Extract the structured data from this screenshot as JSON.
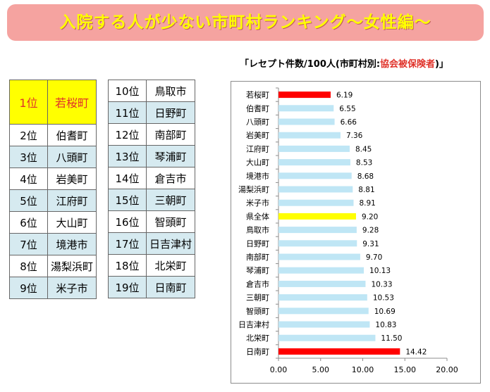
{
  "banner": {
    "title": "入院する人が少ない市町村ランキング～女性編～"
  },
  "ranking_left": [
    {
      "rank": "1位",
      "town": "若桜町"
    },
    {
      "rank": "2位",
      "town": "伯耆町"
    },
    {
      "rank": "3位",
      "town": "八頭町"
    },
    {
      "rank": "4位",
      "town": "岩美町"
    },
    {
      "rank": "5位",
      "town": "江府町"
    },
    {
      "rank": "6位",
      "town": "大山町"
    },
    {
      "rank": "7位",
      "town": "境港市"
    },
    {
      "rank": "8位",
      "town": "湯梨浜町"
    },
    {
      "rank": "9位",
      "town": "米子市"
    }
  ],
  "ranking_right": [
    {
      "rank": "10位",
      "town": "鳥取市"
    },
    {
      "rank": "11位",
      "town": "日野町"
    },
    {
      "rank": "12位",
      "town": "南部町"
    },
    {
      "rank": "13位",
      "town": "琴浦町"
    },
    {
      "rank": "14位",
      "town": "倉吉市"
    },
    {
      "rank": "15位",
      "town": "三朝町"
    },
    {
      "rank": "16位",
      "town": "智頭町"
    },
    {
      "rank": "17位",
      "town": "日吉津村"
    },
    {
      "rank": "18位",
      "town": "北栄町"
    },
    {
      "rank": "19位",
      "town": "日南町"
    }
  ],
  "chart_title": {
    "prefix": "「レセプト件数/100人(市町村別:",
    "highlight": "協会被保険者",
    "suffix": ")」"
  },
  "colors": {
    "default_bar": "#bfe6f5",
    "best_worst_bar": "#ff0000",
    "prefecture_bar": "#ffff00",
    "banner_bg": "#f5a3a0",
    "banner_text": "#ffff00"
  },
  "chart_data": {
    "type": "bar",
    "orientation": "horizontal",
    "categories": [
      "若桜町",
      "伯耆町",
      "八頭町",
      "岩美町",
      "江府町",
      "大山町",
      "境港市",
      "湯梨浜町",
      "米子市",
      "県全体",
      "鳥取市",
      "日野町",
      "南部町",
      "琴浦町",
      "倉吉市",
      "三朝町",
      "智頭町",
      "日吉津村",
      "北栄町",
      "日南町"
    ],
    "values": [
      6.19,
      6.55,
      6.66,
      7.36,
      8.45,
      8.53,
      8.68,
      8.81,
      8.91,
      9.2,
      9.28,
      9.31,
      9.7,
      10.13,
      10.33,
      10.53,
      10.69,
      10.83,
      11.5,
      14.42
    ],
    "value_labels": [
      "6.19",
      "6.55",
      "6.66",
      "7.36",
      "8.45",
      "8.53",
      "8.68",
      "8.81",
      "8.91",
      "9.20",
      "9.28",
      "9.31",
      "9.70",
      "10.13",
      "10.33",
      "10.53",
      "10.69",
      "10.83",
      "11.50",
      "14.42"
    ],
    "bar_colors": [
      "#ff0000",
      "#bfe6f5",
      "#bfe6f5",
      "#bfe6f5",
      "#bfe6f5",
      "#bfe6f5",
      "#bfe6f5",
      "#bfe6f5",
      "#bfe6f5",
      "#ffff00",
      "#bfe6f5",
      "#bfe6f5",
      "#bfe6f5",
      "#bfe6f5",
      "#bfe6f5",
      "#bfe6f5",
      "#bfe6f5",
      "#bfe6f5",
      "#bfe6f5",
      "#ff0000"
    ],
    "xlim": [
      0,
      20
    ],
    "xticks": [
      "0.00",
      "5.00",
      "10.00",
      "15.00",
      "20.00"
    ],
    "grid": false
  }
}
